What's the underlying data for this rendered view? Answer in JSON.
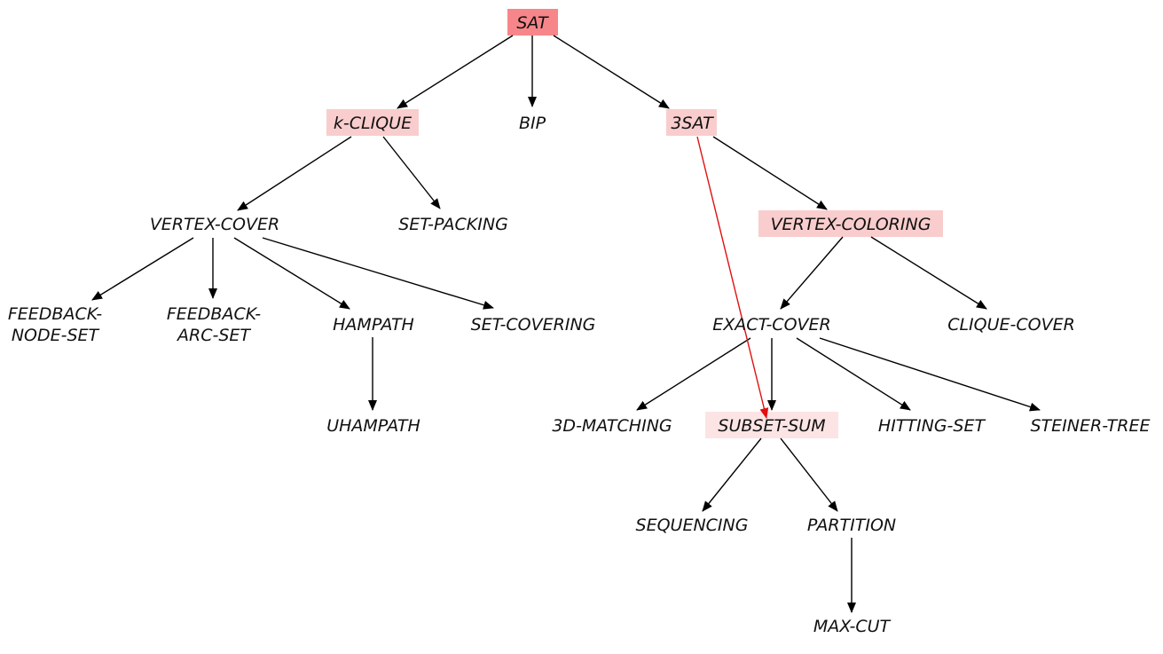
{
  "nodes": {
    "sat": "SAT",
    "k_clique": "k-CLIQUE",
    "bip": "BIP",
    "three_sat": "3SAT",
    "vertex_cover": "VERTEX-COVER",
    "set_packing": "SET-PACKING",
    "vertex_coloring": "VERTEX-COLORING",
    "feedback_node_set_1": "FEEDBACK-",
    "feedback_node_set_2": "NODE-SET",
    "feedback_arc_set_1": "FEEDBACK-",
    "feedback_arc_set_2": "ARC-SET",
    "hampath": "HAMPATH",
    "set_covering": "SET-COVERING",
    "exact_cover": "EXACT-COVER",
    "clique_cover": "CLIQUE-COVER",
    "uhampath": "UHAMPATH",
    "three_d_matching": "3D-MATCHING",
    "subset_sum": "SUBSET-SUM",
    "hitting_set": "HITTING-SET",
    "steiner_tree": "STEINER-TREE",
    "sequencing": "SEQUENCING",
    "partition": "PARTITION",
    "max_cut": "MAX-CUT"
  },
  "highlight_colors": {
    "strong": "#f7868a",
    "medium": "#f9cdcd",
    "light": "#fce4e4"
  },
  "edge_colors": {
    "default": "#000000",
    "highlight": "#e01010"
  }
}
